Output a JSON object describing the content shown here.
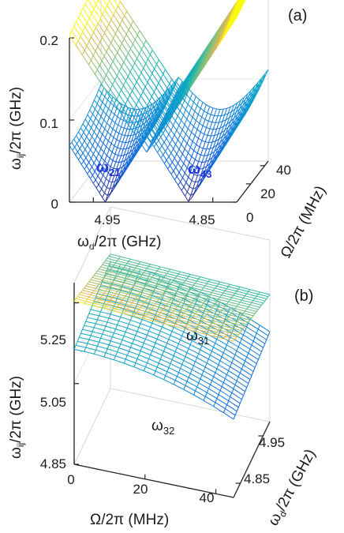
{
  "chart_data": [
    {
      "type": "surface",
      "panel_label": "(a)",
      "zlabel": {
        "base": "ω",
        "sub": "ij",
        "rest": "/2π (GHz)"
      },
      "xlabel": {
        "base": "ω",
        "sub": "d",
        "rest": "/2π (GHz)"
      },
      "ylabel": "Ω/2π (MHz)",
      "z_ticks": [
        "0",
        "0.1",
        "0.2"
      ],
      "x_ticks": [
        "4.95",
        "4.85"
      ],
      "y_ticks": [
        "0",
        "20",
        "40"
      ],
      "zlim": [
        0,
        0.2
      ],
      "xlim": [
        4.97,
        4.83
      ],
      "ylim": [
        0,
        45
      ],
      "series": [
        {
          "name": "ω21",
          "label_base": "ω",
          "label_sub": "21"
        },
        {
          "name": "ω43",
          "label_base": "ω",
          "label_sub": "43"
        }
      ],
      "grid": true,
      "colormap": "parula"
    },
    {
      "type": "surface",
      "panel_label": "(b)",
      "zlabel": {
        "base": "ω",
        "sub": "ij",
        "rest": "/2π (GHz)"
      },
      "xlabel": "Ω/2π (MHz)",
      "ylabel": {
        "base": "ω",
        "sub": "d",
        "rest": "/2π (GHz)"
      },
      "z_ticks": [
        "4.85",
        "5.05",
        "5.25"
      ],
      "x_ticks": [
        "0",
        "20",
        "40"
      ],
      "y_ticks": [
        "4.85",
        "4.95"
      ],
      "zlim": [
        4.85,
        5.3
      ],
      "xlim": [
        0,
        45
      ],
      "ylim": [
        4.82,
        4.98
      ],
      "series": [
        {
          "name": "ω31",
          "label_base": "ω",
          "label_sub": "31"
        },
        {
          "name": "ω32",
          "label_base": "ω",
          "label_sub": "32"
        }
      ],
      "grid": true,
      "colormap": "parula"
    }
  ]
}
